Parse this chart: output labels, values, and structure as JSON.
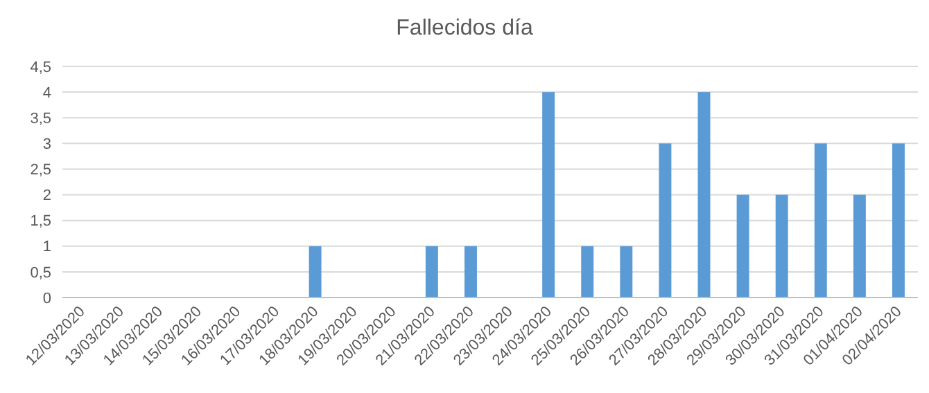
{
  "chart_data": {
    "type": "bar",
    "title": "Fallecidos día",
    "categories": [
      "12/03/2020",
      "13/03/2020",
      "14/03/2020",
      "15/03/2020",
      "16/03/2020",
      "17/03/2020",
      "18/03/2020",
      "19/03/2020",
      "20/03/2020",
      "21/03/2020",
      "22/03/2020",
      "23/03/2020",
      "24/03/2020",
      "25/03/2020",
      "26/03/2020",
      "27/03/2020",
      "28/03/2020",
      "29/03/2020",
      "30/03/2020",
      "31/03/2020",
      "01/04/2020",
      "02/04/2020"
    ],
    "values": [
      0,
      0,
      0,
      0,
      0,
      0,
      1,
      0,
      0,
      1,
      1,
      0,
      4,
      1,
      1,
      3,
      4,
      2,
      2,
      3,
      2,
      3
    ],
    "color": "#5b9bd5",
    "ylim": [
      0,
      4.5
    ],
    "yticks": [
      0,
      {
        "value": 0.5,
        "label": "0,5"
      },
      1,
      {
        "value": 1.5,
        "label": "1,5"
      },
      2,
      {
        "value": 2.5,
        "label": "2,5"
      },
      3,
      {
        "value": 3.5,
        "label": "3,5"
      },
      4,
      {
        "value": 4.5,
        "label": "4,5"
      }
    ],
    "grid": "y"
  }
}
